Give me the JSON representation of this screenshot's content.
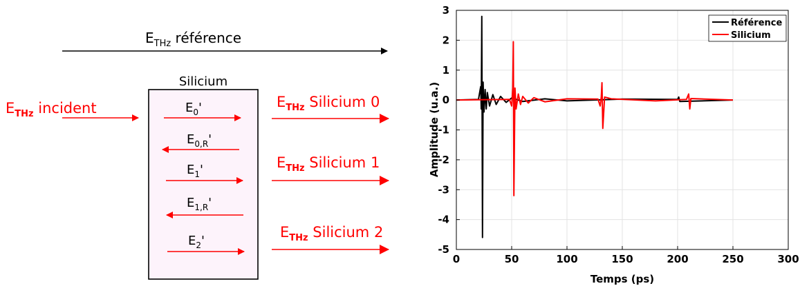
{
  "diagram": {
    "reference_label": {
      "main": "E",
      "sub": "THz",
      "rest": " référence"
    },
    "incident_label": {
      "main": "E",
      "sub": "THz",
      "rest": " incident"
    },
    "box_label": "Silicium",
    "inner_fields": [
      {
        "main": "E",
        "sub": "0",
        "rest": "'",
        "direction": "right"
      },
      {
        "main": "E",
        "sub": "0,R",
        "rest": "'",
        "direction": "left"
      },
      {
        "main": "E",
        "sub": "1",
        "rest": "'",
        "direction": "right"
      },
      {
        "main": "E",
        "sub": "1,R",
        "rest": "'",
        "direction": "left"
      },
      {
        "main": "E",
        "sub": "2",
        "rest": "'",
        "direction": "right"
      }
    ],
    "outputs": [
      {
        "main": "E",
        "sub": "THz",
        "rest": " Silicium 0"
      },
      {
        "main": "E",
        "sub": "THz",
        "rest": " Silicium 1"
      },
      {
        "main": "E",
        "sub": "THz",
        "rest": " Silicium 2"
      }
    ],
    "colors": {
      "signal": "#ff0000",
      "reference": "#000000",
      "box_fill": "#fdf3fb"
    }
  },
  "chart_data": {
    "type": "line",
    "title": "",
    "xlabel": "Temps (ps)",
    "ylabel": "Amplitude (u.a.)",
    "xlim": [
      0,
      300
    ],
    "ylim": [
      -5,
      3
    ],
    "xticks": [
      0,
      50,
      100,
      150,
      200,
      250,
      300
    ],
    "yticks": [
      -5,
      -4,
      -3,
      -2,
      -1,
      0,
      1,
      2,
      3
    ],
    "grid": true,
    "legend_position": "top-right",
    "series": [
      {
        "name": "Référence",
        "color": "#000000",
        "x": [
          0,
          20,
          22,
          22.5,
          23,
          23.6,
          24.2,
          25,
          26,
          27,
          28,
          30,
          33,
          36,
          40,
          45,
          50,
          60,
          80,
          100,
          150,
          200,
          201,
          202,
          250
        ],
        "y": [
          0,
          0.02,
          0.45,
          -0.3,
          2.8,
          -4.6,
          0.6,
          -0.4,
          0.35,
          -0.3,
          0.25,
          -0.2,
          0.18,
          -0.15,
          0.12,
          -0.08,
          0.07,
          -0.05,
          0.04,
          -0.03,
          0.03,
          0.02,
          0.1,
          -0.05,
          0
        ]
      },
      {
        "name": "Silicium",
        "color": "#ff0000",
        "x": [
          0,
          48,
          50,
          51,
          51.5,
          52,
          53,
          54,
          56,
          58,
          60,
          65,
          70,
          80,
          100,
          128,
          130,
          131,
          131.6,
          132.4,
          134,
          140,
          180,
          208,
          210,
          211,
          212,
          250
        ],
        "y": [
          0,
          0.02,
          -0.2,
          0.4,
          1.95,
          -3.2,
          0.4,
          -0.3,
          0.2,
          -0.15,
          0.12,
          -0.1,
          0.08,
          -0.06,
          0.04,
          0.03,
          -0.2,
          0.1,
          0.58,
          -0.95,
          0.1,
          0.04,
          -0.03,
          0.02,
          0.2,
          -0.3,
          0.05,
          0
        ]
      }
    ]
  }
}
